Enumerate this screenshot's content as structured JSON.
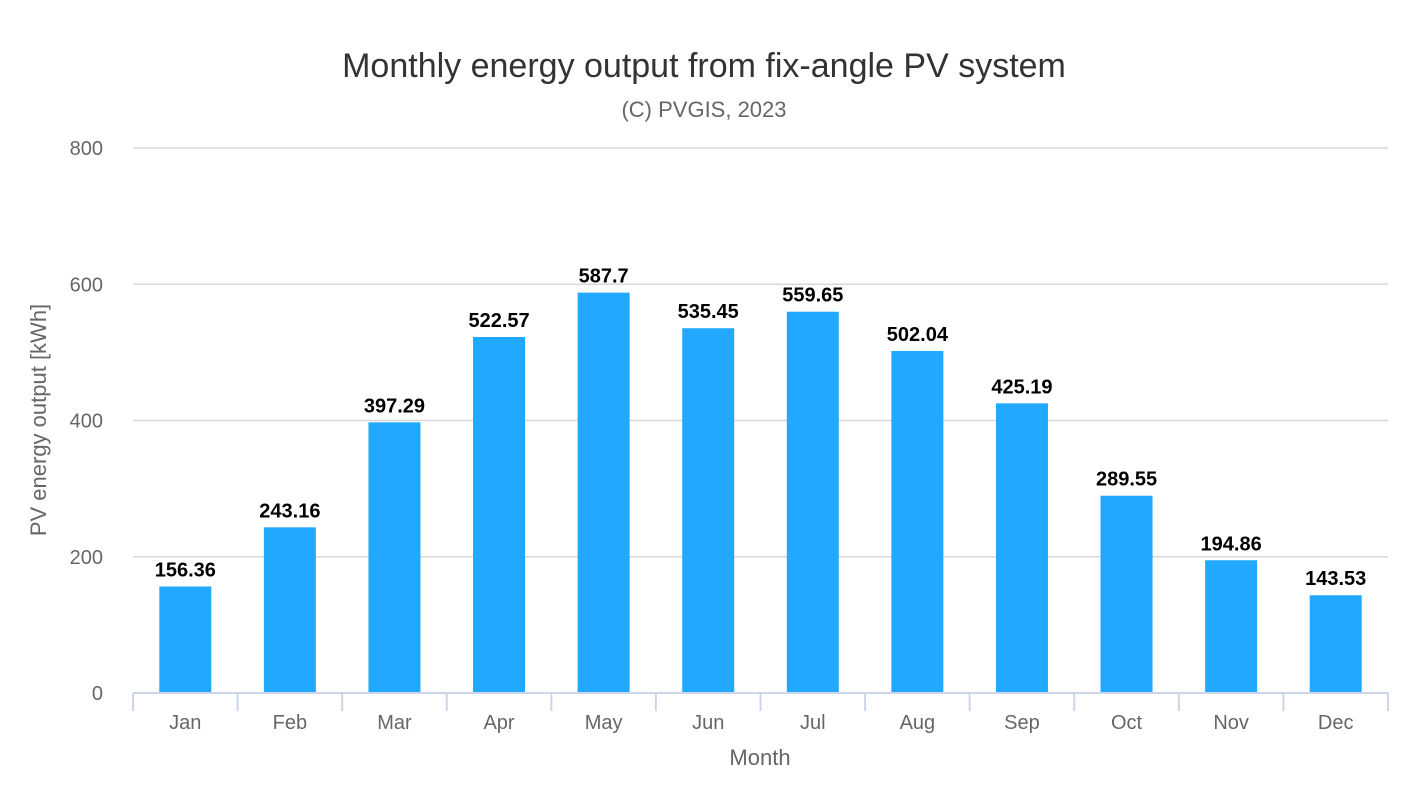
{
  "chart_data": {
    "type": "bar",
    "title": "Monthly energy output from fix-angle PV system",
    "subtitle": "(C) PVGIS, 2023",
    "xlabel": "Month",
    "ylabel": "PV energy output [kWh]",
    "ylim": [
      0,
      800
    ],
    "yticks": [
      0,
      200,
      400,
      600,
      800
    ],
    "grid": true,
    "legend": "none",
    "categories": [
      "Jan",
      "Feb",
      "Mar",
      "Apr",
      "May",
      "Jun",
      "Jul",
      "Aug",
      "Sep",
      "Oct",
      "Nov",
      "Dec"
    ],
    "values": [
      156.36,
      243.16,
      397.29,
      522.57,
      587.7,
      535.45,
      559.65,
      502.04,
      425.19,
      289.55,
      194.86,
      143.53
    ],
    "data_labels": [
      "156.36",
      "243.16",
      "397.29",
      "522.57",
      "587.7",
      "535.45",
      "559.65",
      "502.04",
      "425.19",
      "289.55",
      "194.86",
      "143.53"
    ],
    "colors": {
      "bar": "#21a8ff",
      "grid": "#d8d8d8",
      "axis": "#ccd6eb",
      "text": "#333333",
      "axis_text": "#666666"
    }
  }
}
